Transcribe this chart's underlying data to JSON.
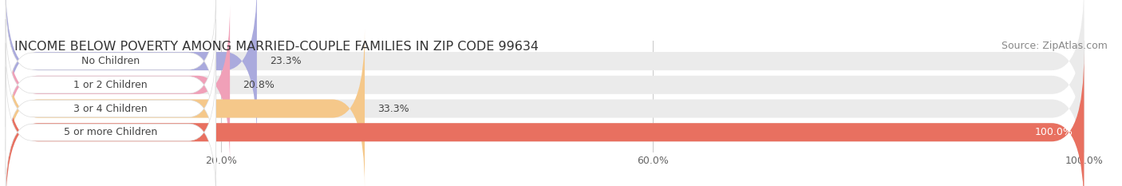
{
  "title": "INCOME BELOW POVERTY AMONG MARRIED-COUPLE FAMILIES IN ZIP CODE 99634",
  "source": "Source: ZipAtlas.com",
  "categories": [
    "No Children",
    "1 or 2 Children",
    "3 or 4 Children",
    "5 or more Children"
  ],
  "values": [
    23.3,
    20.8,
    33.3,
    100.0
  ],
  "bar_colors": [
    "#aaaadd",
    "#f0a0b8",
    "#f5c88a",
    "#e87060"
  ],
  "bar_bg_color": "#ebebeb",
  "label_bg_color": "#ffffff",
  "xlim": [
    0,
    100
  ],
  "xticks": [
    20.0,
    60.0,
    100.0
  ],
  "xtick_labels": [
    "20.0%",
    "60.0%",
    "100.0%"
  ],
  "title_fontsize": 11.5,
  "source_fontsize": 9,
  "tick_fontsize": 9,
  "label_fontsize": 9,
  "value_fontsize": 9,
  "background_color": "#ffffff",
  "fig_width": 14.06,
  "fig_height": 2.33,
  "dpi": 100
}
